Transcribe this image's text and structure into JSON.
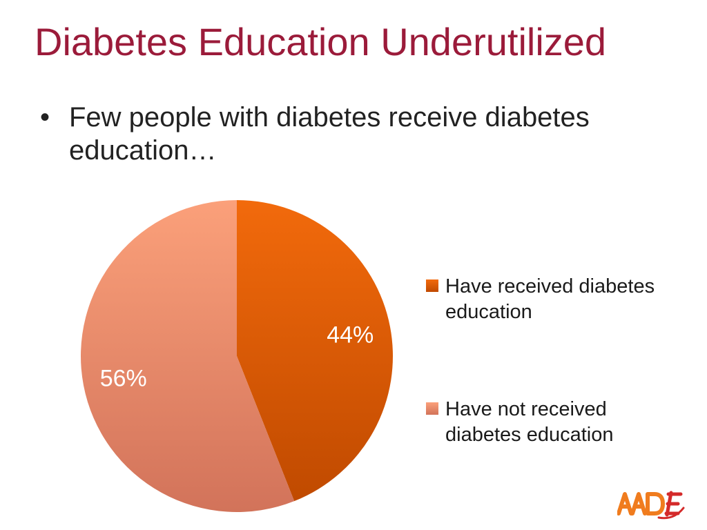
{
  "slide": {
    "title": "Diabetes Education Underutilized",
    "bullet_glyph": "•",
    "bullet_text": "Few people with diabetes receive diabetes education…"
  },
  "chart_data": {
    "type": "pie",
    "title": "",
    "legend_position": "right",
    "slices": [
      {
        "label": "Have received diabetes education",
        "legend_lines": [
          "Have received diabetes",
          "education"
        ],
        "value": 44,
        "data_label": "44%",
        "color_top": "#f26a0c",
        "color_bottom": "#c04a00"
      },
      {
        "label": "Have not received diabetes education",
        "legend_lines": [
          "Have not received",
          "diabetes education"
        ],
        "value": 56,
        "data_label": "56%",
        "color_top": "#fba07a",
        "color_bottom": "#d2735a"
      }
    ]
  },
  "logo": {
    "text": "AADE",
    "color_orange": "#f07c1e",
    "color_red": "#d42a2a"
  }
}
